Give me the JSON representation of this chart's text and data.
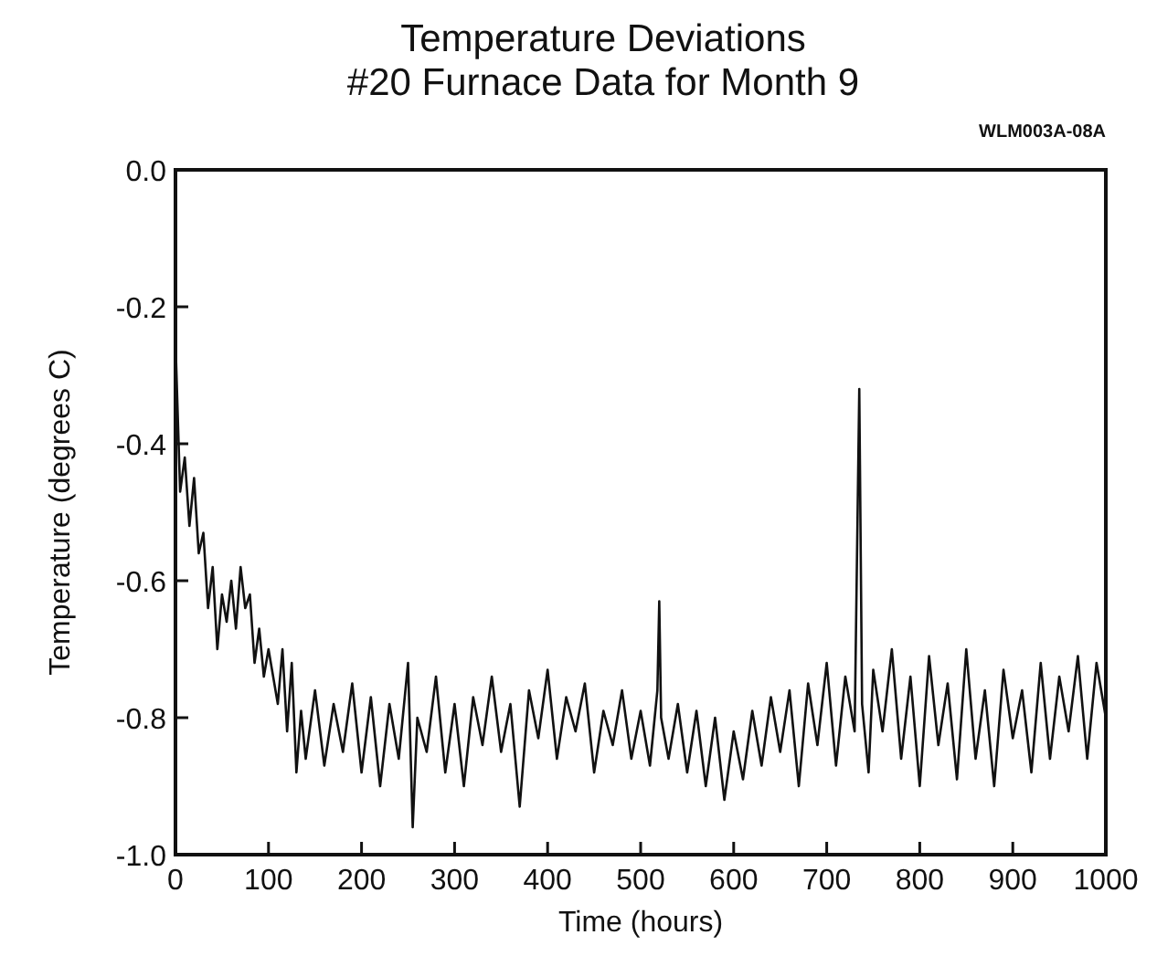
{
  "chart_data": {
    "type": "line",
    "title": "Temperature Deviations\n#20 Furnace Data for Month 9",
    "annotations": [
      "WLM003A-08A"
    ],
    "xlabel": "Time (hours)",
    "ylabel": "Temperature (degrees C)",
    "xlim": [
      0,
      1000
    ],
    "ylim": [
      -1,
      0
    ],
    "xticks": [
      0,
      100,
      200,
      300,
      400,
      500,
      600,
      700,
      800,
      900,
      1000
    ],
    "yticks": [
      {
        "value": 0,
        "label": "0.0"
      },
      -0.2,
      -0.4,
      -0.6,
      -0.8,
      {
        "value": -1,
        "label": "-1.0"
      }
    ],
    "grid": false,
    "marker": "none",
    "line_style": "solid",
    "series": [
      {
        "color": "#111111",
        "x": [
          0,
          5,
          10,
          15,
          20,
          25,
          30,
          35,
          40,
          45,
          50,
          55,
          60,
          65,
          70,
          75,
          80,
          85,
          90,
          95,
          100,
          110,
          115,
          120,
          125,
          130,
          135,
          140,
          150,
          160,
          170,
          180,
          190,
          200,
          210,
          220,
          230,
          240,
          250,
          255,
          260,
          270,
          280,
          290,
          300,
          310,
          320,
          330,
          340,
          350,
          360,
          370,
          380,
          390,
          400,
          410,
          420,
          430,
          440,
          450,
          460,
          470,
          480,
          490,
          500,
          510,
          518,
          520,
          522,
          530,
          540,
          550,
          560,
          570,
          580,
          590,
          600,
          610,
          620,
          630,
          640,
          650,
          660,
          670,
          680,
          690,
          700,
          710,
          720,
          730,
          735,
          738,
          745,
          750,
          760,
          770,
          780,
          790,
          800,
          810,
          820,
          830,
          840,
          850,
          860,
          870,
          880,
          890,
          900,
          910,
          920,
          930,
          940,
          950,
          960,
          970,
          980,
          990,
          1000
        ],
        "values": [
          -0.25,
          -0.47,
          -0.42,
          -0.52,
          -0.45,
          -0.56,
          -0.53,
          -0.64,
          -0.58,
          -0.7,
          -0.62,
          -0.66,
          -0.6,
          -0.67,
          -0.58,
          -0.64,
          -0.62,
          -0.72,
          -0.67,
          -0.74,
          -0.7,
          -0.78,
          -0.7,
          -0.82,
          -0.72,
          -0.88,
          -0.79,
          -0.86,
          -0.76,
          -0.87,
          -0.78,
          -0.85,
          -0.75,
          -0.88,
          -0.77,
          -0.9,
          -0.78,
          -0.86,
          -0.72,
          -0.96,
          -0.8,
          -0.85,
          -0.74,
          -0.88,
          -0.78,
          -0.9,
          -0.77,
          -0.84,
          -0.74,
          -0.85,
          -0.78,
          -0.93,
          -0.76,
          -0.83,
          -0.73,
          -0.86,
          -0.77,
          -0.82,
          -0.75,
          -0.88,
          -0.79,
          -0.84,
          -0.76,
          -0.86,
          -0.79,
          -0.87,
          -0.76,
          -0.63,
          -0.8,
          -0.86,
          -0.78,
          -0.88,
          -0.79,
          -0.9,
          -0.8,
          -0.92,
          -0.82,
          -0.89,
          -0.79,
          -0.87,
          -0.77,
          -0.85,
          -0.76,
          -0.9,
          -0.75,
          -0.84,
          -0.72,
          -0.87,
          -0.74,
          -0.82,
          -0.32,
          -0.78,
          -0.88,
          -0.73,
          -0.82,
          -0.7,
          -0.86,
          -0.74,
          -0.9,
          -0.71,
          -0.84,
          -0.75,
          -0.89,
          -0.7,
          -0.86,
          -0.76,
          -0.9,
          -0.73,
          -0.83,
          -0.76,
          -0.88,
          -0.72,
          -0.86,
          -0.74,
          -0.82,
          -0.71,
          -0.86,
          -0.72,
          -0.8
        ]
      }
    ]
  }
}
